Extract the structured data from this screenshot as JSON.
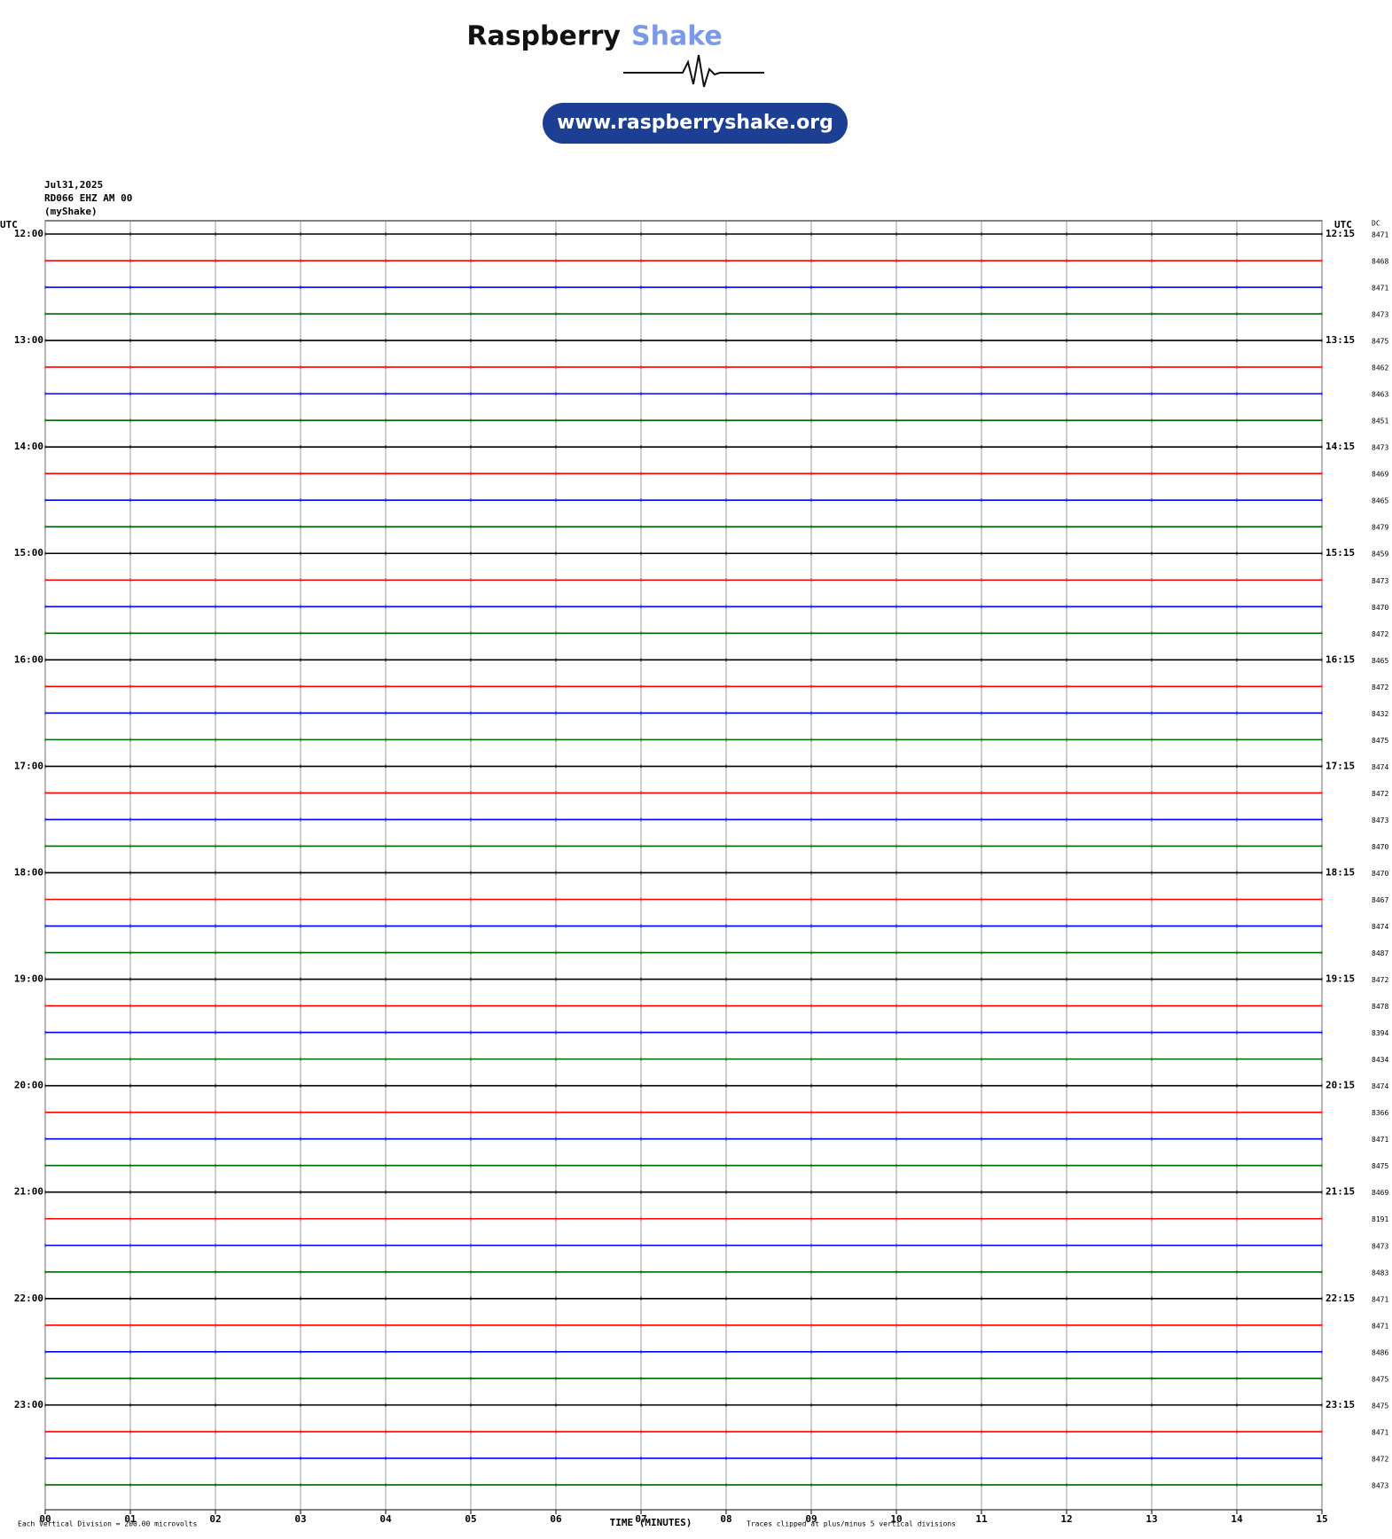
{
  "header": {
    "brand_first": "Raspberry",
    "brand_second": "Shake",
    "url": "www.raspberryshake.org"
  },
  "chart_data": {
    "type": "helicorder",
    "date": "Jul31,2025",
    "station": "RD066 EHZ AM 00",
    "source": "(myShake)",
    "left_axis_title": "UTC",
    "right_axis_title": "UTC",
    "dc_title": "DC",
    "left_labels": [
      "12:00",
      "13:00",
      "14:00",
      "15:00",
      "16:00",
      "17:00",
      "18:00",
      "19:00",
      "20:00",
      "21:00",
      "22:00",
      "23:00"
    ],
    "right_labels": [
      "12:15",
      "13:15",
      "14:15",
      "15:15",
      "16:15",
      "17:15",
      "18:15",
      "19:15",
      "20:15",
      "21:15",
      "22:15",
      "23:15"
    ],
    "dc_values": [
      8471,
      8468,
      8471,
      8473,
      8475,
      8462,
      8463,
      8451,
      8473,
      8469,
      8465,
      8479,
      8459,
      8473,
      8470,
      8472,
      8465,
      8472,
      8432,
      8475,
      8474,
      8472,
      8473,
      8470,
      8470,
      8467,
      8474,
      8487,
      8472,
      8478,
      8394,
      8434,
      8474,
      8366,
      8471,
      8475,
      8469,
      8191,
      8473,
      8483,
      8471,
      8471,
      8486,
      8475,
      8475,
      8471,
      8472,
      8473
    ],
    "trace_colors": [
      "#000000",
      "#ff0000",
      "#0000ff",
      "#006400"
    ],
    "xlim": [
      0,
      15
    ],
    "xticks": [
      {
        "value": 0,
        "label": "00"
      },
      {
        "value": 1,
        "label": "01"
      },
      {
        "value": 2,
        "label": "02"
      },
      {
        "value": 3,
        "label": "03"
      },
      {
        "value": 4,
        "label": "04"
      },
      {
        "value": 5,
        "label": "05"
      },
      {
        "value": 6,
        "label": "06"
      },
      {
        "value": 7,
        "label": "07"
      },
      {
        "value": 8,
        "label": "08"
      },
      {
        "value": 9,
        "label": "09"
      },
      {
        "value": 10,
        "label": "10"
      },
      {
        "value": 11,
        "label": "11"
      },
      {
        "value": 12,
        "label": "12"
      },
      {
        "value": 13,
        "label": "13"
      },
      {
        "value": 14,
        "label": "14"
      },
      {
        "value": 15,
        "label": "15"
      }
    ],
    "xlabel": "TIME (MINUTES)",
    "scale_note": "Each Vertical Division =  200.00 microvolts",
    "clip_note": "Traces clipped at plus/minus 5 vertical divisions",
    "grid": true
  }
}
